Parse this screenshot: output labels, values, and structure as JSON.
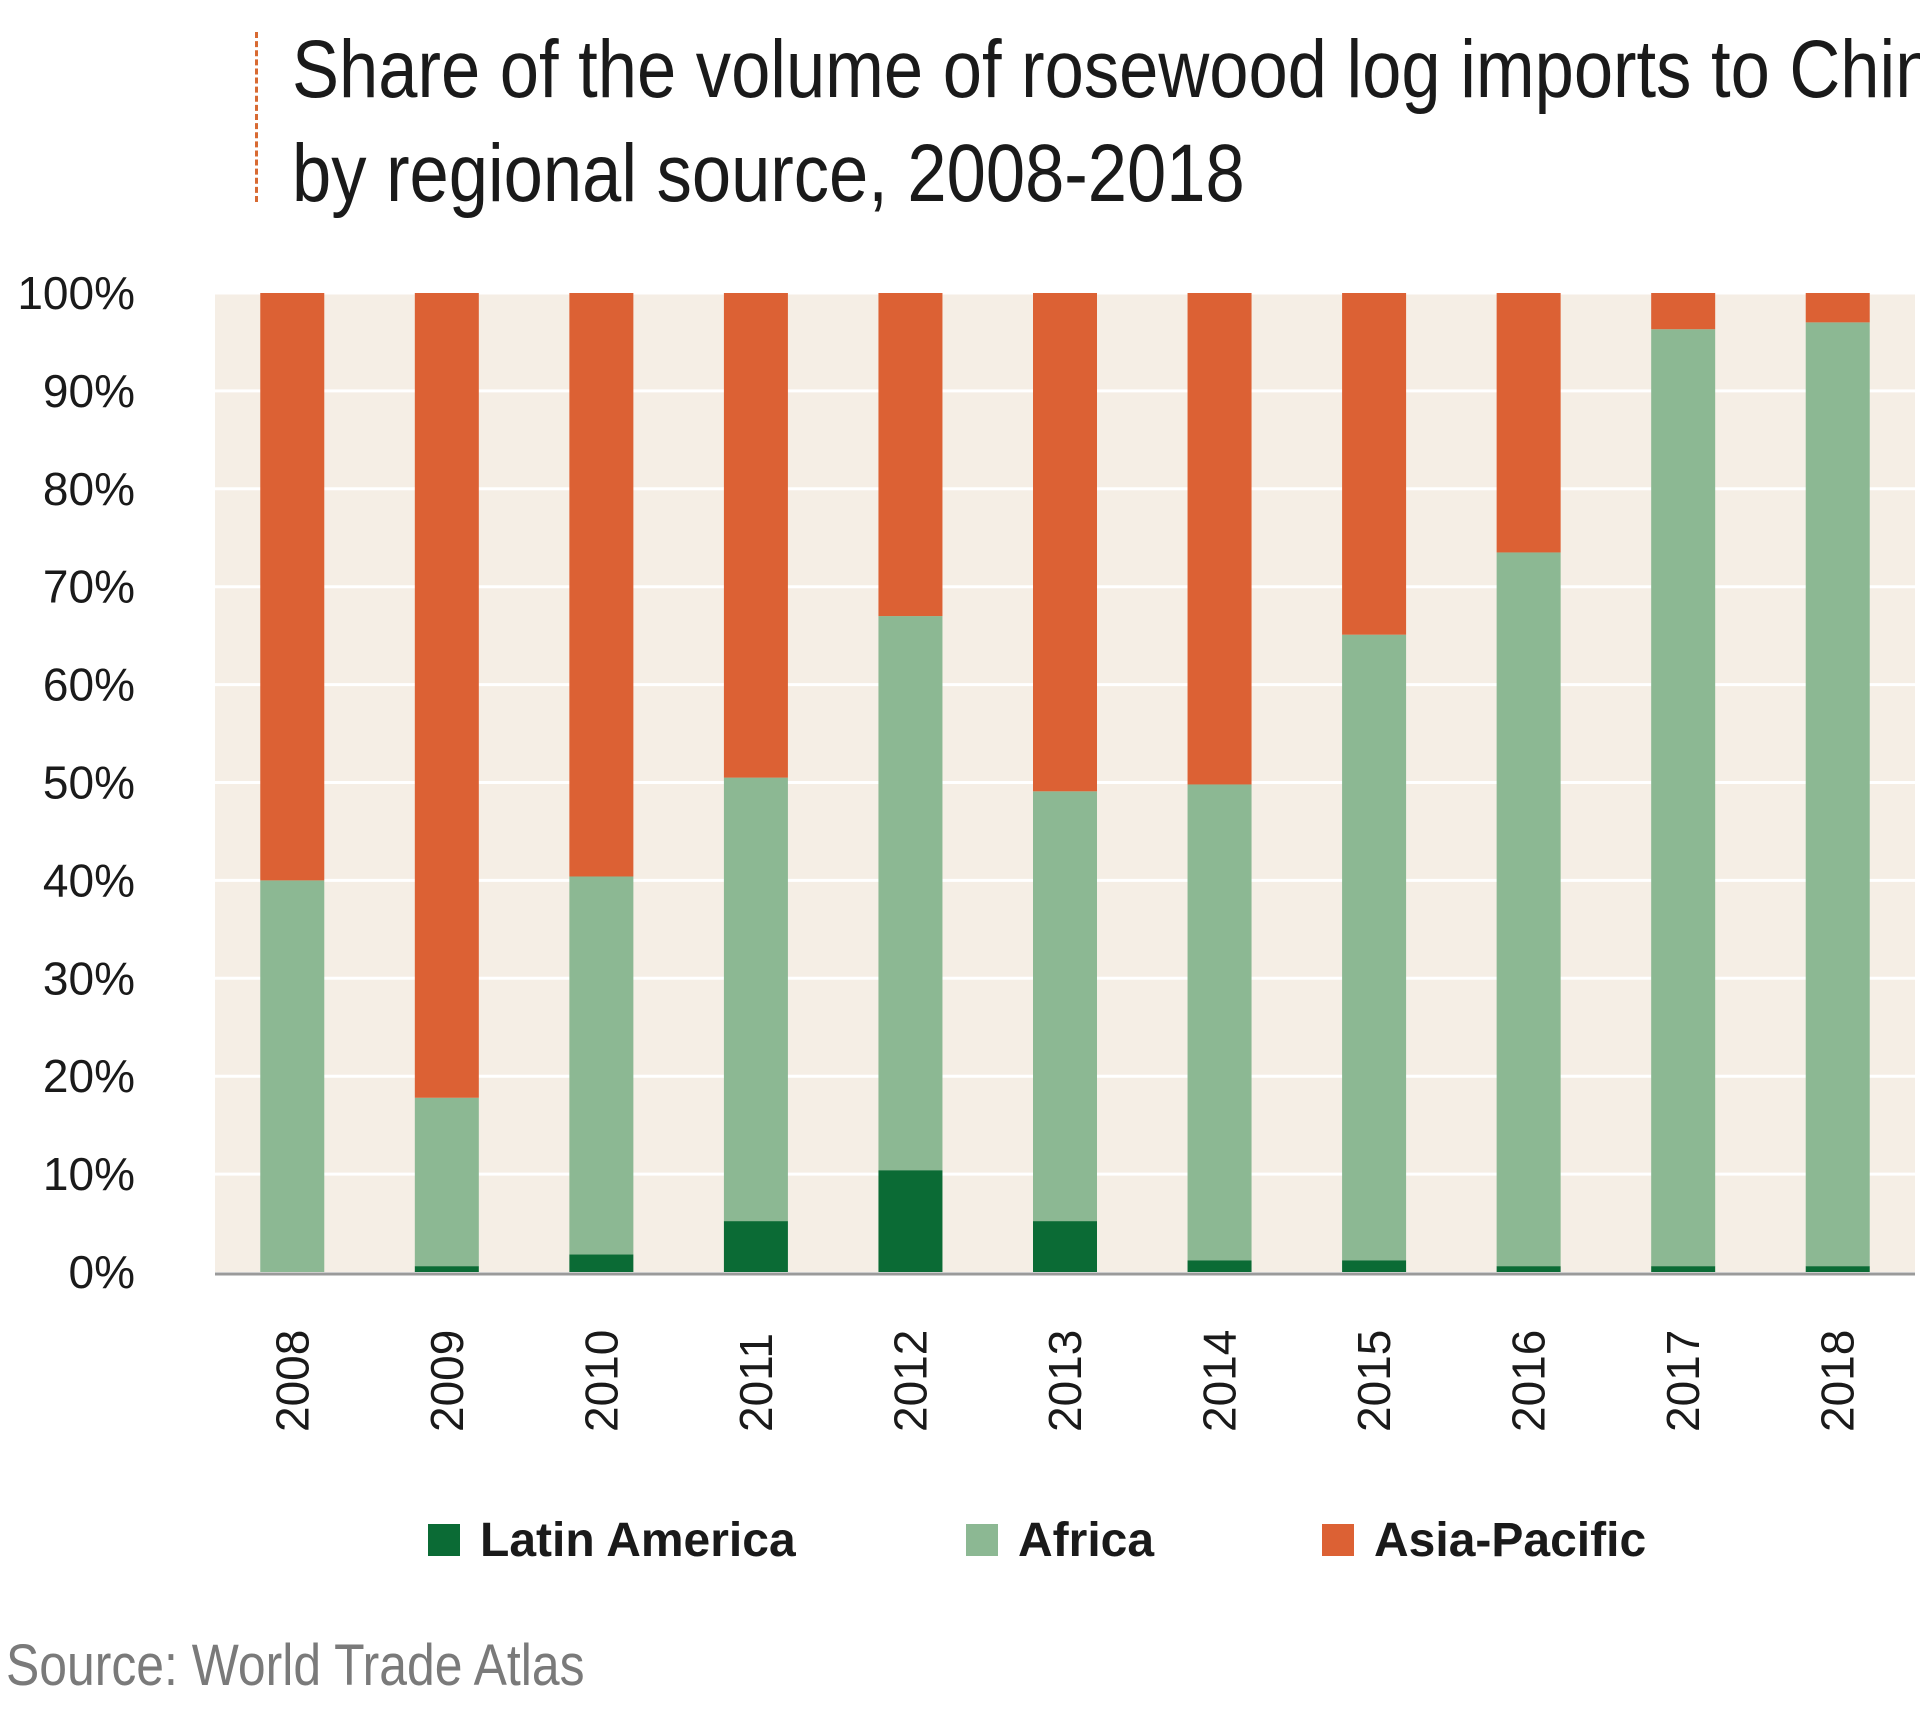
{
  "title_lines": [
    "Share of the volume of rosewood log imports to China",
    "by regional source, 2008-2018"
  ],
  "source": "Source: World Trade Atlas",
  "colors": {
    "plot_bg": "#f5eee5",
    "grid": "#ffffff",
    "latin_america": "#0b6b35",
    "africa": "#8cb893",
    "asia_pacific": "#dc6134",
    "accent": "#d86a32"
  },
  "chart_data": {
    "type": "bar",
    "stacked": true,
    "categories": [
      "2008",
      "2009",
      "2010",
      "2011",
      "2012",
      "2013",
      "2014",
      "2015",
      "2016",
      "2017",
      "2018"
    ],
    "series": [
      {
        "name": "Latin America",
        "values": [
          0,
          0.6,
          1.8,
          5.2,
          10.4,
          5.2,
          1.2,
          1.2,
          0.6,
          0.6,
          0.6
        ]
      },
      {
        "name": "Africa",
        "values": [
          40,
          17.2,
          38.6,
          45.3,
          56.6,
          43.9,
          48.6,
          63.9,
          72.9,
          95.7,
          96.4
        ]
      },
      {
        "name": "Asia-Pacific",
        "values": [
          60,
          82.2,
          59.6,
          49.5,
          33.0,
          50.9,
          50.2,
          34.9,
          26.5,
          3.7,
          3.0
        ]
      }
    ],
    "yticks": [
      "0%",
      "10%",
      "20%",
      "30%",
      "40%",
      "50%",
      "60%",
      "70%",
      "80%",
      "90%",
      "100%"
    ],
    "ylim": [
      0,
      100
    ],
    "grid": true,
    "legend_position": "bottom"
  }
}
